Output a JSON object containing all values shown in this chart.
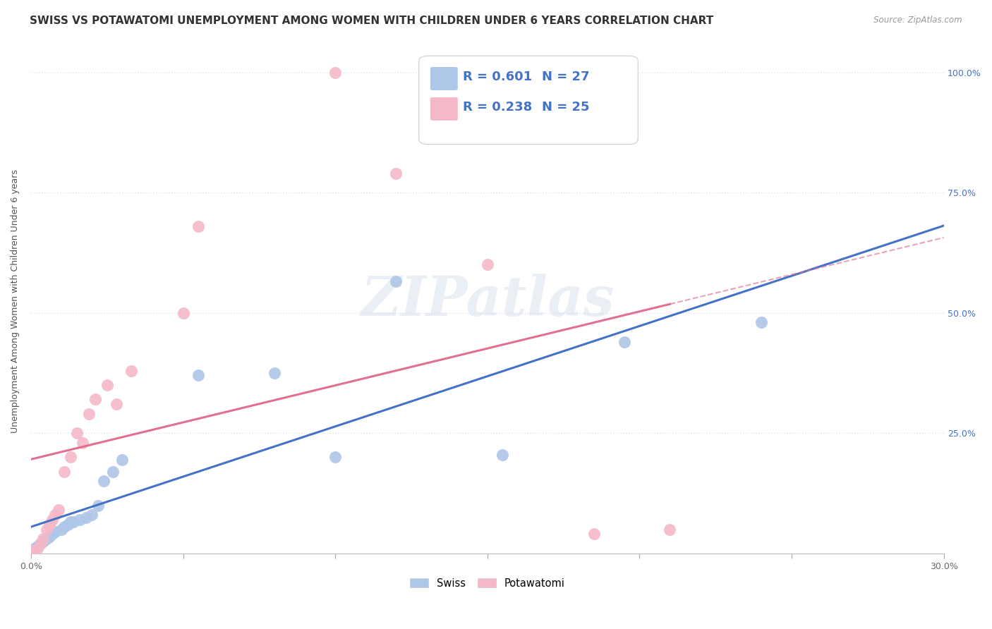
{
  "title": "SWISS VS POTAWATOMI UNEMPLOYMENT AMONG WOMEN WITH CHILDREN UNDER 6 YEARS CORRELATION CHART",
  "source": "Source: ZipAtlas.com",
  "ylabel": "Unemployment Among Women with Children Under 6 years",
  "swiss_R": "0.601",
  "swiss_N": "27",
  "potawatomi_R": "0.238",
  "potawatomi_N": "25",
  "swiss_color": "#aec6e8",
  "potawatomi_color": "#f4b8c8",
  "swiss_line_color": "#4472c4",
  "potawatomi_line_color": "#e07090",
  "legend_swiss_label": "Swiss",
  "legend_potawatomi_label": "Potawatomi",
  "watermark": "ZIPatlas",
  "swiss_x": [
    0.001,
    0.002,
    0.003,
    0.004,
    0.005,
    0.006,
    0.007,
    0.008,
    0.01,
    0.011,
    0.012,
    0.013,
    0.014,
    0.016,
    0.018,
    0.02,
    0.022,
    0.024,
    0.027,
    0.03,
    0.055,
    0.08,
    0.1,
    0.12,
    0.155,
    0.195,
    0.24
  ],
  "swiss_y": [
    0.01,
    0.015,
    0.02,
    0.025,
    0.03,
    0.035,
    0.04,
    0.045,
    0.05,
    0.055,
    0.06,
    0.065,
    0.065,
    0.07,
    0.075,
    0.08,
    0.1,
    0.15,
    0.17,
    0.195,
    0.37,
    0.375,
    0.2,
    0.565,
    0.205,
    0.44,
    0.48
  ],
  "potawatomi_x": [
    0.001,
    0.002,
    0.003,
    0.004,
    0.005,
    0.006,
    0.007,
    0.008,
    0.009,
    0.011,
    0.013,
    0.015,
    0.017,
    0.019,
    0.021,
    0.025,
    0.028,
    0.033,
    0.05,
    0.055,
    0.1,
    0.12,
    0.15,
    0.185,
    0.21
  ],
  "potawatomi_y": [
    0.005,
    0.01,
    0.02,
    0.03,
    0.05,
    0.06,
    0.07,
    0.08,
    0.09,
    0.17,
    0.2,
    0.25,
    0.23,
    0.29,
    0.32,
    0.35,
    0.31,
    0.38,
    0.5,
    0.68,
    1.0,
    0.79,
    0.6,
    0.04,
    0.05
  ],
  "xlim": [
    0,
    0.3
  ],
  "ylim": [
    0,
    1.05
  ],
  "x_tick_vals": [
    0,
    0.05,
    0.1,
    0.15,
    0.2,
    0.25,
    0.3
  ],
  "y_tick_vals": [
    0.0,
    0.25,
    0.5,
    0.75,
    1.0
  ],
  "y_tick_labels": [
    "0.0%",
    "25.0%",
    "50.0%",
    "75.0%",
    "100.0%"
  ],
  "background_color": "#ffffff",
  "grid_color": "#e8e0f0",
  "title_fontsize": 11,
  "axis_label_fontsize": 9,
  "tick_fontsize": 9,
  "legend_fontsize": 12
}
